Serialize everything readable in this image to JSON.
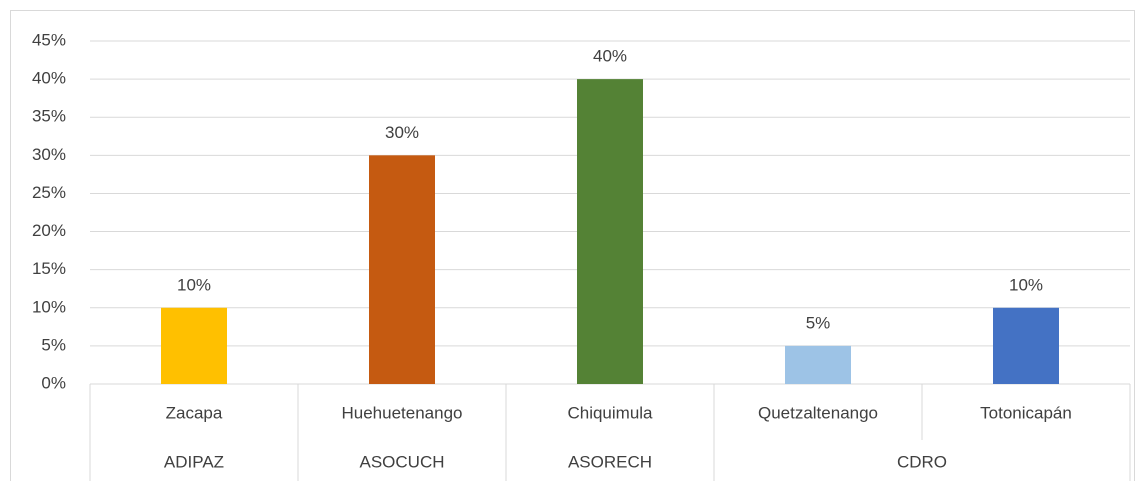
{
  "chart_data": {
    "type": "bar",
    "groups": [
      {
        "name": "ADIPAZ",
        "categories": [
          "Zacapa"
        ]
      },
      {
        "name": "ASOCUCH",
        "categories": [
          "Huehuetenango"
        ]
      },
      {
        "name": "ASORECH",
        "categories": [
          "Chiquimula"
        ]
      },
      {
        "name": "CDRO",
        "categories": [
          "Quetzaltenango",
          "Totonicapán"
        ]
      }
    ],
    "values": [
      10,
      30,
      40,
      5,
      10
    ],
    "value_labels": [
      "10%",
      "30%",
      "40%",
      "5%",
      "10%"
    ],
    "colors": [
      "#ffc000",
      "#c55a11",
      "#548235",
      "#9dc3e6",
      "#4472c4"
    ],
    "ylim": [
      0,
      45
    ],
    "yticks": [
      {
        "value": 0,
        "label": "0%"
      },
      {
        "value": 5,
        "label": "5%"
      },
      {
        "value": 10,
        "label": "10%"
      },
      {
        "value": 15,
        "label": "15%"
      },
      {
        "value": 20,
        "label": "20%"
      },
      {
        "value": 25,
        "label": "25%"
      },
      {
        "value": 30,
        "label": "30%"
      },
      {
        "value": 35,
        "label": "35%"
      },
      {
        "value": 40,
        "label": "40%"
      },
      {
        "value": 45,
        "label": "45%"
      }
    ],
    "grid": true
  }
}
